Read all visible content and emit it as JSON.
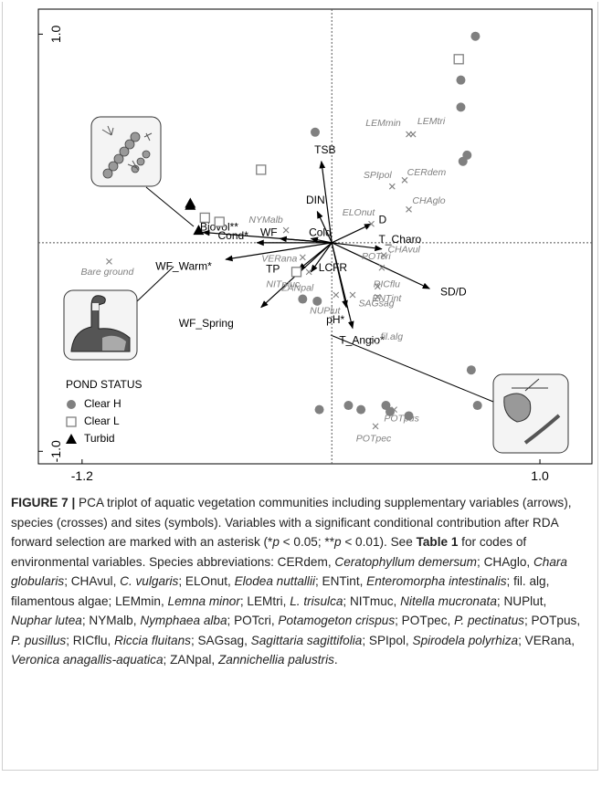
{
  "chart_data": {
    "type": "scatter",
    "xlim": [
      -1.41,
      1.25
    ],
    "ylim": [
      -1.06,
      1.12
    ],
    "xticks": [
      {
        "value": -1.2,
        "label": "-1.2"
      },
      {
        "value": 1,
        "label": "1.0"
      }
    ],
    "yticks": [
      {
        "value": -1,
        "label": "-1.0"
      },
      {
        "value": 1,
        "label": "1.0"
      }
    ],
    "legend_title": "POND STATUS",
    "series": [
      {
        "name": "Clear H",
        "marker": "circle",
        "color": "#808080",
        "x": [
          0.69,
          0.62,
          0.62,
          0.65,
          0.63,
          -0.08,
          -0.14,
          -0.07,
          -0.06,
          0.08,
          0.14,
          0.26,
          0.28,
          0.37,
          0.67,
          0.7
        ],
        "y": [
          0.99,
          0.78,
          0.65,
          0.42,
          0.39,
          0.53,
          -0.27,
          -0.28,
          -0.8,
          -0.78,
          -0.8,
          -0.78,
          -0.81,
          -0.83,
          -0.61,
          -0.78
        ]
      },
      {
        "name": "Clear L",
        "marker": "square",
        "color": "#808080",
        "x": [
          0.61,
          -0.34,
          -0.61,
          -0.54,
          -0.17
        ],
        "y": [
          0.88,
          0.35,
          0.12,
          0.1,
          -0.14
        ]
      },
      {
        "name": "Turbid",
        "marker": "triangle",
        "color": "#000000",
        "x": [
          -0.68,
          -0.68,
          -0.64
        ],
        "y": [
          0.19,
          0.18,
          0.06
        ]
      }
    ],
    "species": {
      "color": "#808080",
      "labels": [
        "LEMmin",
        "LEMtri",
        "SPIpol",
        "CERdem",
        "CHAglo",
        "ELOnut",
        "NYMalb",
        "Bare ground",
        "VERana",
        "NITmuc",
        "ZANpal",
        "NUPlut",
        "POTcri",
        "CHAvul",
        "RICflu",
        "ENTint",
        "SAGsag",
        "fil.alg",
        "POTpus",
        "POTpec"
      ],
      "x": [
        0.37,
        0.39,
        0.29,
        0.35,
        0.37,
        0.19,
        -0.22,
        -1.07,
        -0.14,
        -0.11,
        -0.07,
        0.02,
        0.24,
        0.25,
        0.22,
        0.22,
        0.1,
        0.2,
        0.3,
        0.21
      ],
      "y": [
        0.52,
        0.52,
        0.27,
        0.3,
        0.16,
        0.09,
        0.06,
        -0.09,
        -0.07,
        -0.14,
        -0.28,
        -0.25,
        -0.12,
        -0.06,
        -0.21,
        -0.26,
        -0.25,
        -0.47,
        -0.8,
        -0.88
      ]
    },
    "variables": {
      "color": "#000000",
      "labels": [
        "TSB",
        "DIN",
        "D",
        "Cold",
        "WF",
        "Biovol**",
        "Cond*",
        "WF_Warm*",
        "TP",
        "LCFR",
        "WF_Spring",
        "T_Charo",
        "SD/D",
        "pH*",
        "T_Angio*"
      ],
      "x": [
        -0.05,
        -0.07,
        0.19,
        -0.1,
        -0.25,
        -0.62,
        -0.36,
        -0.51,
        -0.16,
        -0.1,
        -0.34,
        0.24,
        0.47,
        0.07,
        0.1
      ],
      "y": [
        0.39,
        0.15,
        0.09,
        0.02,
        0.02,
        0.05,
        0.0,
        -0.08,
        -0.13,
        -0.14,
        -0.31,
        -0.03,
        -0.22,
        -0.31,
        -0.41
      ]
    }
  },
  "caption": [
    {
      "text": "FIGURE 7 |",
      "style": "bold"
    },
    {
      "text": " PCA triplot of aquatic vegetation communities including supplementary variables (arrows), species (crosses) and sites (symbols). Variables with a significant conditional contribution after RDA forward selection are marked with an asterisk (*",
      "style": "normal"
    },
    {
      "text": "p",
      "style": "italic"
    },
    {
      "text": " < 0.05; **",
      "style": "normal"
    },
    {
      "text": "p",
      "style": "italic"
    },
    {
      "text": " < 0.01). See ",
      "style": "normal"
    },
    {
      "text": "Table 1",
      "style": "bold"
    },
    {
      "text": " for codes of environmental variables. Species abbreviations: CERdem, ",
      "style": "normal"
    },
    {
      "text": "Ceratophyllum demersum",
      "style": "italic"
    },
    {
      "text": "; CHAglo, ",
      "style": "normal"
    },
    {
      "text": "Chara globularis",
      "style": "italic"
    },
    {
      "text": "; CHAvul, ",
      "style": "normal"
    },
    {
      "text": "C. vulgaris",
      "style": "italic"
    },
    {
      "text": "; ELOnut, ",
      "style": "normal"
    },
    {
      "text": "Elodea nuttallii",
      "style": "italic"
    },
    {
      "text": "; ENTint, ",
      "style": "normal"
    },
    {
      "text": "Enteromorpha intestinalis",
      "style": "italic"
    },
    {
      "text": "; fil. alg, filamentous algae; LEMmin, ",
      "style": "normal"
    },
    {
      "text": "Lemna minor",
      "style": "italic"
    },
    {
      "text": "; LEMtri, ",
      "style": "normal"
    },
    {
      "text": "L. trisulca",
      "style": "italic"
    },
    {
      "text": "; NITmuc, ",
      "style": "normal"
    },
    {
      "text": "Nitella mucronata",
      "style": "italic"
    },
    {
      "text": "; NUPlut, ",
      "style": "normal"
    },
    {
      "text": "Nuphar lutea",
      "style": "italic"
    },
    {
      "text": "; NYMalb, ",
      "style": "normal"
    },
    {
      "text": "Nymphaea alba",
      "style": "italic"
    },
    {
      "text": "; POTcri, ",
      "style": "normal"
    },
    {
      "text": "Potamogeton crispus",
      "style": "italic"
    },
    {
      "text": "; POTpec, ",
      "style": "normal"
    },
    {
      "text": "P. pectinatus",
      "style": "italic"
    },
    {
      "text": "; POTpus, ",
      "style": "normal"
    },
    {
      "text": "P. pusillus",
      "style": "italic"
    },
    {
      "text": "; RICflu, ",
      "style": "normal"
    },
    {
      "text": "Riccia fluitans",
      "style": "italic"
    },
    {
      "text": "; SAGsag, ",
      "style": "normal"
    },
    {
      "text": "Sagittaria sagittifolia",
      "style": "italic"
    },
    {
      "text": "; SPIpol, ",
      "style": "normal"
    },
    {
      "text": "Spirodela polyrhiza",
      "style": "italic"
    },
    {
      "text": "; VERana, ",
      "style": "normal"
    },
    {
      "text": "Veronica anagallis-aquatica",
      "style": "italic"
    },
    {
      "text": "; ZANpal, ",
      "style": "normal"
    },
    {
      "text": "Zannichellia palustris",
      "style": "italic"
    },
    {
      "text": ".",
      "style": "normal"
    }
  ]
}
